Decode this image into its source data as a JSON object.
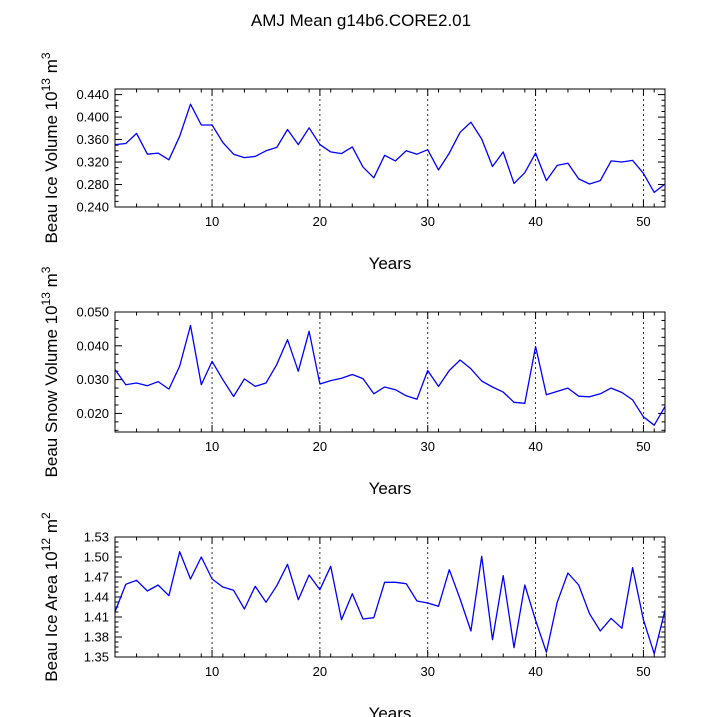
{
  "title": "AMJ Mean g14b6.CORE2.01",
  "colors": {
    "line": "#0000ff",
    "axis": "#000000",
    "refline": "#000000"
  },
  "chart_data": [
    {
      "type": "line",
      "xlabel": "Years",
      "ylabel": "Beau Ice Volume",
      "yunit": "10",
      "yunit_exp": "13",
      "yunit_tail": " m",
      "yunit_tail_exp": "3",
      "xlim": [
        1,
        52
      ],
      "ylim": [
        0.24,
        0.45
      ],
      "xticks": [
        10,
        20,
        30,
        40,
        50
      ],
      "xtick_labels": [
        "10",
        "20",
        "30",
        "40",
        "50"
      ],
      "yticks": [
        0.24,
        0.28,
        0.32,
        0.36,
        0.4,
        0.44
      ],
      "ytick_labels": [
        "0.240",
        "0.280",
        "0.320",
        "0.360",
        "0.400",
        "0.440"
      ],
      "vlines": [
        10,
        20,
        30,
        40,
        50
      ],
      "x": [
        1,
        2,
        3,
        4,
        5,
        6,
        7,
        8,
        9,
        10,
        11,
        12,
        13,
        14,
        15,
        16,
        17,
        18,
        19,
        20,
        21,
        22,
        23,
        24,
        25,
        26,
        27,
        28,
        29,
        30,
        31,
        32,
        33,
        34,
        35,
        36,
        37,
        38,
        39,
        40,
        41,
        42,
        43,
        44,
        45,
        46,
        47,
        48,
        49,
        50,
        51,
        52
      ],
      "y": [
        0.351,
        0.353,
        0.371,
        0.334,
        0.336,
        0.324,
        0.366,
        0.423,
        0.386,
        0.386,
        0.355,
        0.334,
        0.328,
        0.33,
        0.34,
        0.346,
        0.378,
        0.351,
        0.381,
        0.351,
        0.338,
        0.335,
        0.347,
        0.311,
        0.292,
        0.332,
        0.322,
        0.34,
        0.334,
        0.342,
        0.306,
        0.336,
        0.373,
        0.391,
        0.361,
        0.312,
        0.338,
        0.282,
        0.301,
        0.336,
        0.287,
        0.314,
        0.318,
        0.29,
        0.281,
        0.287,
        0.322,
        0.32,
        0.323,
        0.3,
        0.266,
        0.281
      ]
    },
    {
      "type": "line",
      "xlabel": "Years",
      "ylabel": "Beau Snow Volume",
      "yunit": "10",
      "yunit_exp": "13",
      "yunit_tail": " m",
      "yunit_tail_exp": "3",
      "xlim": [
        1,
        52
      ],
      "ylim": [
        0.0145,
        0.05
      ],
      "xticks": [
        10,
        20,
        30,
        40,
        50
      ],
      "xtick_labels": [
        "10",
        "20",
        "30",
        "40",
        "50"
      ],
      "yticks": [
        0.02,
        0.03,
        0.04,
        0.05
      ],
      "ytick_labels": [
        "0.020",
        "0.030",
        "0.040",
        "0.050"
      ],
      "vlines": [
        10,
        20,
        30,
        40,
        50
      ],
      "x": [
        1,
        2,
        3,
        4,
        5,
        6,
        7,
        8,
        9,
        10,
        11,
        12,
        13,
        14,
        15,
        16,
        17,
        18,
        19,
        20,
        21,
        22,
        23,
        24,
        25,
        26,
        27,
        28,
        29,
        30,
        31,
        32,
        33,
        34,
        35,
        36,
        37,
        38,
        39,
        40,
        41,
        42,
        43,
        44,
        45,
        46,
        47,
        48,
        49,
        50,
        51,
        52
      ],
      "y": [
        0.033,
        0.0285,
        0.029,
        0.0282,
        0.0294,
        0.0272,
        0.034,
        0.046,
        0.0285,
        0.0354,
        0.03,
        0.025,
        0.0302,
        0.028,
        0.029,
        0.0345,
        0.0418,
        0.0325,
        0.0443,
        0.0287,
        0.0297,
        0.0304,
        0.0315,
        0.0303,
        0.0258,
        0.0278,
        0.027,
        0.0252,
        0.0242,
        0.0327,
        0.028,
        0.0327,
        0.0358,
        0.0332,
        0.0296,
        0.0278,
        0.0263,
        0.0233,
        0.023,
        0.0398,
        0.0255,
        0.0265,
        0.0275,
        0.0251,
        0.0249,
        0.0258,
        0.0275,
        0.0262,
        0.024,
        0.019,
        0.0165,
        0.022
      ]
    },
    {
      "type": "line",
      "xlabel": "Years",
      "ylabel": "Beau Ice Area",
      "yunit": "10",
      "yunit_exp": "12",
      "yunit_tail": " m",
      "yunit_tail_exp": "2",
      "xlim": [
        1,
        52
      ],
      "ylim": [
        1.35,
        1.53
      ],
      "xticks": [
        10,
        20,
        30,
        40,
        50
      ],
      "xtick_labels": [
        "10",
        "20",
        "30",
        "40",
        "50"
      ],
      "yticks": [
        1.35,
        1.38,
        1.41,
        1.44,
        1.47,
        1.5,
        1.53
      ],
      "ytick_labels": [
        "1.35",
        "1.38",
        "1.41",
        "1.44",
        "1.47",
        "1.50",
        "1.53"
      ],
      "vlines": [
        10,
        20,
        30,
        40,
        50
      ],
      "x": [
        1,
        2,
        3,
        4,
        5,
        6,
        7,
        8,
        9,
        10,
        11,
        12,
        13,
        14,
        15,
        16,
        17,
        18,
        19,
        20,
        21,
        22,
        23,
        24,
        25,
        26,
        27,
        28,
        29,
        30,
        31,
        32,
        33,
        34,
        35,
        36,
        37,
        38,
        39,
        40,
        41,
        42,
        43,
        44,
        45,
        46,
        47,
        48,
        49,
        50,
        51,
        52
      ],
      "y": [
        1.418,
        1.459,
        1.465,
        1.449,
        1.458,
        1.442,
        1.508,
        1.467,
        1.5,
        1.467,
        1.455,
        1.45,
        1.422,
        1.456,
        1.432,
        1.457,
        1.489,
        1.436,
        1.473,
        1.451,
        1.486,
        1.406,
        1.445,
        1.407,
        1.409,
        1.462,
        1.462,
        1.46,
        1.434,
        1.431,
        1.426,
        1.481,
        1.437,
        1.389,
        1.501,
        1.376,
        1.472,
        1.364,
        1.458,
        1.405,
        1.357,
        1.432,
        1.476,
        1.458,
        1.415,
        1.389,
        1.408,
        1.393,
        1.484,
        1.406,
        1.355,
        1.42
      ]
    }
  ]
}
